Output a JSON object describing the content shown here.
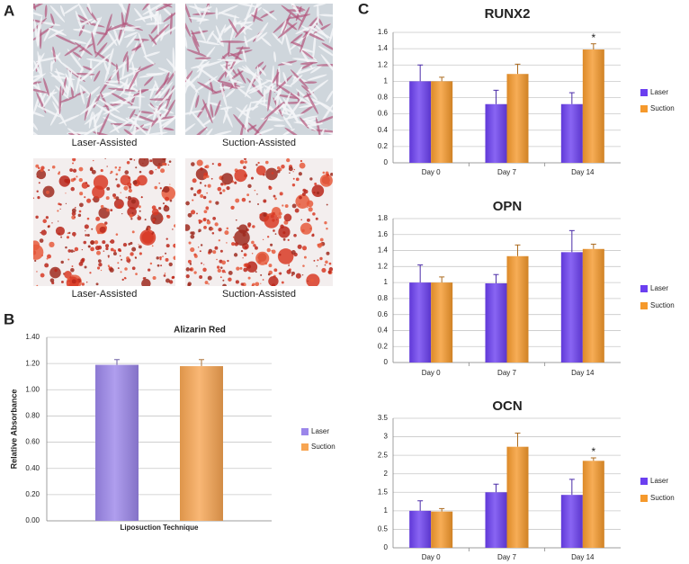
{
  "panel_labels": [
    "A",
    "B",
    "C"
  ],
  "image_captions": [
    "Laser-Assisted",
    "Suction-Assisted",
    "Laser-Assisted",
    "Suction-Assisted"
  ],
  "chart_data": [
    {
      "type": "bar",
      "title": "Alizarin Red",
      "y_label": "Relative Absorbance",
      "x_label": "Liposuction Technique",
      "categories": [
        null
      ],
      "series": [
        {
          "name": "Laser",
          "color": "#9b86ea",
          "values": [
            1.19
          ],
          "errors": [
            0.04
          ]
        },
        {
          "name": "Suction",
          "color": "#f7a552",
          "values": [
            1.18
          ],
          "errors": [
            0.05
          ]
        }
      ],
      "ylim": [
        0,
        1.4
      ],
      "yticks": [
        {
          "value": 0,
          "label": "0.00"
        },
        {
          "value": 0.2,
          "label": "0.20"
        },
        {
          "value": 0.4,
          "label": "0.40"
        },
        {
          "value": 0.6,
          "label": "0.60"
        },
        {
          "value": 0.8,
          "label": "0.80"
        },
        {
          "value": 1,
          "label": "1.00"
        },
        {
          "value": 1.2,
          "label": "1.20"
        },
        {
          "value": 1.4,
          "label": "1.40"
        }
      ],
      "grid": true,
      "legend": "right"
    },
    {
      "type": "bar",
      "title": "RUNX2",
      "categories": [
        "Day 0",
        "Day 7",
        "Day 14"
      ],
      "series": [
        {
          "name": "Laser",
          "color": "#6b3ff0",
          "values": [
            1.0,
            0.72,
            0.72
          ],
          "errors": [
            0.2,
            0.17,
            0.14
          ],
          "annotations": [
            null,
            null,
            null
          ]
        },
        {
          "name": "Suction",
          "color": "#f5992c",
          "values": [
            1.0,
            1.09,
            1.39
          ],
          "errors": [
            0.05,
            0.12,
            0.07
          ],
          "annotations": [
            null,
            null,
            "*"
          ]
        }
      ],
      "ylim": [
        0,
        1.6
      ],
      "yticks": [
        0,
        0.2,
        0.4,
        0.6,
        0.8,
        1,
        1.2,
        1.4,
        1.6
      ],
      "grid": true,
      "legend": "right"
    },
    {
      "type": "bar",
      "title": "OPN",
      "categories": [
        "Day 0",
        "Day 7",
        "Day 14"
      ],
      "series": [
        {
          "name": "Laser",
          "color": "#6b3ff0",
          "values": [
            1.0,
            0.99,
            1.38
          ],
          "errors": [
            0.22,
            0.11,
            0.27
          ]
        },
        {
          "name": "Suction",
          "color": "#f5992c",
          "values": [
            1.0,
            1.33,
            1.42
          ],
          "errors": [
            0.07,
            0.14,
            0.06
          ]
        }
      ],
      "ylim": [
        0,
        1.8
      ],
      "yticks": [
        0,
        0.2,
        0.4,
        0.6,
        0.8,
        1,
        1.2,
        1.4,
        1.6,
        1.8
      ],
      "grid": true,
      "legend": "right"
    },
    {
      "type": "bar",
      "title": "OCN",
      "categories": [
        "Day 0",
        "Day 7",
        "Day 14"
      ],
      "series": [
        {
          "name": "Laser",
          "color": "#6b3ff0",
          "values": [
            1.0,
            1.5,
            1.43
          ],
          "errors": [
            0.27,
            0.22,
            0.42
          ],
          "annotations": [
            null,
            null,
            null
          ]
        },
        {
          "name": "Suction",
          "color": "#f5992c",
          "values": [
            0.98,
            2.73,
            2.35
          ],
          "errors": [
            0.08,
            0.37,
            0.08
          ],
          "annotations": [
            null,
            null,
            "*"
          ]
        }
      ],
      "ylim": [
        0,
        3.5
      ],
      "yticks": [
        0,
        0.5,
        1,
        1.5,
        2,
        2.5,
        3,
        3.5
      ],
      "grid": true,
      "legend": "right"
    }
  ]
}
